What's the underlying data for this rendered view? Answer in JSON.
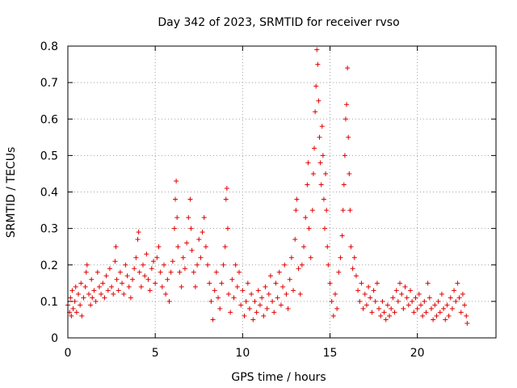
{
  "chart_data": {
    "type": "scatter",
    "title": "Day 342 of 2023, SRMTID for receiver rvso",
    "xlabel": "GPS time / hours",
    "ylabel": "SRMTID / TECUs",
    "xlim": [
      0,
      24.5
    ],
    "ylim": [
      0,
      0.8
    ],
    "x_ticks": [
      0,
      5,
      10,
      15,
      20
    ],
    "y_ticks": [
      0,
      0.1,
      0.2,
      0.3,
      0.4,
      0.5,
      0.6,
      0.7,
      0.8
    ],
    "x_tick_labels": [
      "0",
      "5",
      "10",
      "15",
      "20"
    ],
    "y_tick_labels": [
      "0",
      "0.1",
      "0.2",
      "0.3",
      "0.4",
      "0.5",
      "0.6",
      "0.7",
      "0.8"
    ],
    "grid": true,
    "marker": "+",
    "color": "#e00000",
    "series": [
      {
        "name": "SRMTID",
        "points": [
          [
            0.0,
            0.09
          ],
          [
            0.1,
            0.07
          ],
          [
            0.15,
            0.11
          ],
          [
            0.2,
            0.06
          ],
          [
            0.25,
            0.13
          ],
          [
            0.3,
            0.08
          ],
          [
            0.4,
            0.1
          ],
          [
            0.45,
            0.14
          ],
          [
            0.5,
            0.07
          ],
          [
            0.6,
            0.12
          ],
          [
            0.7,
            0.09
          ],
          [
            0.75,
            0.15
          ],
          [
            0.8,
            0.06
          ],
          [
            0.9,
            0.11
          ],
          [
            1.0,
            0.14
          ],
          [
            1.05,
            0.18
          ],
          [
            1.1,
            0.2
          ],
          [
            1.2,
            0.12
          ],
          [
            1.3,
            0.09
          ],
          [
            1.35,
            0.16
          ],
          [
            1.4,
            0.11
          ],
          [
            1.5,
            0.13
          ],
          [
            1.6,
            0.1
          ],
          [
            1.7,
            0.18
          ],
          [
            1.8,
            0.14
          ],
          [
            1.9,
            0.12
          ],
          [
            2.0,
            0.15
          ],
          [
            2.1,
            0.11
          ],
          [
            2.2,
            0.17
          ],
          [
            2.3,
            0.13
          ],
          [
            2.4,
            0.19
          ],
          [
            2.5,
            0.14
          ],
          [
            2.6,
            0.12
          ],
          [
            2.7,
            0.21
          ],
          [
            2.75,
            0.25
          ],
          [
            2.8,
            0.16
          ],
          [
            2.9,
            0.13
          ],
          [
            3.0,
            0.18
          ],
          [
            3.1,
            0.15
          ],
          [
            3.2,
            0.12
          ],
          [
            3.3,
            0.2
          ],
          [
            3.4,
            0.17
          ],
          [
            3.5,
            0.14
          ],
          [
            3.6,
            0.11
          ],
          [
            3.7,
            0.16
          ],
          [
            3.8,
            0.19
          ],
          [
            3.9,
            0.22
          ],
          [
            4.0,
            0.27
          ],
          [
            4.05,
            0.29
          ],
          [
            4.1,
            0.18
          ],
          [
            4.2,
            0.14
          ],
          [
            4.3,
            0.2
          ],
          [
            4.4,
            0.17
          ],
          [
            4.5,
            0.23
          ],
          [
            4.6,
            0.16
          ],
          [
            4.7,
            0.13
          ],
          [
            4.8,
            0.19
          ],
          [
            4.9,
            0.21
          ],
          [
            5.0,
            0.15
          ],
          [
            5.1,
            0.22
          ],
          [
            5.2,
            0.25
          ],
          [
            5.3,
            0.18
          ],
          [
            5.4,
            0.14
          ],
          [
            5.5,
            0.2
          ],
          [
            5.6,
            0.12
          ],
          [
            5.7,
            0.16
          ],
          [
            5.8,
            0.1
          ],
          [
            5.9,
            0.18
          ],
          [
            6.0,
            0.21
          ],
          [
            6.1,
            0.3
          ],
          [
            6.15,
            0.38
          ],
          [
            6.2,
            0.43
          ],
          [
            6.25,
            0.33
          ],
          [
            6.3,
            0.25
          ],
          [
            6.4,
            0.18
          ],
          [
            6.5,
            0.14
          ],
          [
            6.6,
            0.22
          ],
          [
            6.7,
            0.19
          ],
          [
            6.8,
            0.26
          ],
          [
            6.9,
            0.33
          ],
          [
            7.0,
            0.38
          ],
          [
            7.05,
            0.3
          ],
          [
            7.1,
            0.24
          ],
          [
            7.2,
            0.18
          ],
          [
            7.3,
            0.14
          ],
          [
            7.4,
            0.2
          ],
          [
            7.5,
            0.27
          ],
          [
            7.6,
            0.22
          ],
          [
            7.7,
            0.29
          ],
          [
            7.8,
            0.33
          ],
          [
            7.9,
            0.25
          ],
          [
            8.0,
            0.2
          ],
          [
            8.1,
            0.15
          ],
          [
            8.2,
            0.1
          ],
          [
            8.3,
            0.05
          ],
          [
            8.4,
            0.13
          ],
          [
            8.5,
            0.18
          ],
          [
            8.6,
            0.11
          ],
          [
            8.7,
            0.08
          ],
          [
            8.8,
            0.15
          ],
          [
            8.9,
            0.2
          ],
          [
            9.0,
            0.25
          ],
          [
            9.05,
            0.38
          ],
          [
            9.1,
            0.41
          ],
          [
            9.15,
            0.3
          ],
          [
            9.2,
            0.12
          ],
          [
            9.3,
            0.07
          ],
          [
            9.4,
            0.16
          ],
          [
            9.5,
            0.11
          ],
          [
            9.6,
            0.2
          ],
          [
            9.7,
            0.14
          ],
          [
            9.8,
            0.18
          ],
          [
            9.9,
            0.09
          ],
          [
            10.0,
            0.13
          ],
          [
            10.1,
            0.06
          ],
          [
            10.2,
            0.1
          ],
          [
            10.3,
            0.15
          ],
          [
            10.4,
            0.08
          ],
          [
            10.5,
            0.12
          ],
          [
            10.6,
            0.05
          ],
          [
            10.7,
            0.1
          ],
          [
            10.8,
            0.07
          ],
          [
            10.9,
            0.13
          ],
          [
            11.0,
            0.09
          ],
          [
            11.1,
            0.11
          ],
          [
            11.2,
            0.06
          ],
          [
            11.3,
            0.14
          ],
          [
            11.4,
            0.08
          ],
          [
            11.5,
            0.12
          ],
          [
            11.6,
            0.17
          ],
          [
            11.7,
            0.1
          ],
          [
            11.8,
            0.07
          ],
          [
            11.9,
            0.15
          ],
          [
            12.0,
            0.11
          ],
          [
            12.1,
            0.18
          ],
          [
            12.2,
            0.09
          ],
          [
            12.3,
            0.14
          ],
          [
            12.4,
            0.2
          ],
          [
            12.5,
            0.12
          ],
          [
            12.6,
            0.08
          ],
          [
            12.7,
            0.16
          ],
          [
            12.8,
            0.22
          ],
          [
            12.9,
            0.13
          ],
          [
            13.0,
            0.27
          ],
          [
            13.05,
            0.35
          ],
          [
            13.1,
            0.38
          ],
          [
            13.2,
            0.19
          ],
          [
            13.3,
            0.12
          ],
          [
            13.4,
            0.2
          ],
          [
            13.5,
            0.25
          ],
          [
            13.6,
            0.33
          ],
          [
            13.7,
            0.42
          ],
          [
            13.75,
            0.48
          ],
          [
            13.8,
            0.3
          ],
          [
            13.9,
            0.22
          ],
          [
            14.0,
            0.35
          ],
          [
            14.05,
            0.45
          ],
          [
            14.1,
            0.52
          ],
          [
            14.15,
            0.62
          ],
          [
            14.2,
            0.69
          ],
          [
            14.25,
            0.79
          ],
          [
            14.3,
            0.75
          ],
          [
            14.35,
            0.65
          ],
          [
            14.4,
            0.55
          ],
          [
            14.45,
            0.48
          ],
          [
            14.5,
            0.42
          ],
          [
            14.55,
            0.58
          ],
          [
            14.6,
            0.5
          ],
          [
            14.65,
            0.38
          ],
          [
            14.7,
            0.3
          ],
          [
            14.75,
            0.45
          ],
          [
            14.8,
            0.35
          ],
          [
            14.85,
            0.25
          ],
          [
            14.9,
            0.2
          ],
          [
            15.0,
            0.15
          ],
          [
            15.1,
            0.1
          ],
          [
            15.2,
            0.06
          ],
          [
            15.3,
            0.12
          ],
          [
            15.4,
            0.08
          ],
          [
            15.5,
            0.18
          ],
          [
            15.6,
            0.22
          ],
          [
            15.7,
            0.28
          ],
          [
            15.75,
            0.35
          ],
          [
            15.8,
            0.42
          ],
          [
            15.85,
            0.5
          ],
          [
            15.9,
            0.6
          ],
          [
            15.95,
            0.64
          ],
          [
            16.0,
            0.74
          ],
          [
            16.05,
            0.55
          ],
          [
            16.1,
            0.45
          ],
          [
            16.15,
            0.35
          ],
          [
            16.2,
            0.25
          ],
          [
            16.3,
            0.19
          ],
          [
            16.4,
            0.22
          ],
          [
            16.5,
            0.17
          ],
          [
            16.6,
            0.13
          ],
          [
            16.7,
            0.1
          ],
          [
            16.8,
            0.15
          ],
          [
            16.9,
            0.08
          ],
          [
            17.0,
            0.12
          ],
          [
            17.1,
            0.09
          ],
          [
            17.2,
            0.14
          ],
          [
            17.3,
            0.11
          ],
          [
            17.4,
            0.07
          ],
          [
            17.5,
            0.13
          ],
          [
            17.6,
            0.1
          ],
          [
            17.7,
            0.15
          ],
          [
            17.8,
            0.08
          ],
          [
            17.9,
            0.06
          ],
          [
            18.0,
            0.1
          ],
          [
            18.1,
            0.07
          ],
          [
            18.2,
            0.05
          ],
          [
            18.3,
            0.09
          ],
          [
            18.4,
            0.06
          ],
          [
            18.5,
            0.08
          ],
          [
            18.6,
            0.11
          ],
          [
            18.7,
            0.07
          ],
          [
            18.8,
            0.13
          ],
          [
            18.9,
            0.1
          ],
          [
            19.0,
            0.15
          ],
          [
            19.1,
            0.12
          ],
          [
            19.2,
            0.08
          ],
          [
            19.3,
            0.14
          ],
          [
            19.4,
            0.11
          ],
          [
            19.5,
            0.09
          ],
          [
            19.6,
            0.13
          ],
          [
            19.7,
            0.1
          ],
          [
            19.8,
            0.07
          ],
          [
            19.9,
            0.11
          ],
          [
            20.0,
            0.08
          ],
          [
            20.1,
            0.12
          ],
          [
            20.2,
            0.09
          ],
          [
            20.3,
            0.06
          ],
          [
            20.4,
            0.1
          ],
          [
            20.5,
            0.07
          ],
          [
            20.6,
            0.15
          ],
          [
            20.7,
            0.11
          ],
          [
            20.8,
            0.08
          ],
          [
            20.9,
            0.05
          ],
          [
            21.0,
            0.09
          ],
          [
            21.1,
            0.06
          ],
          [
            21.2,
            0.1
          ],
          [
            21.3,
            0.07
          ],
          [
            21.4,
            0.12
          ],
          [
            21.5,
            0.08
          ],
          [
            21.6,
            0.05
          ],
          [
            21.7,
            0.09
          ],
          [
            21.8,
            0.06
          ],
          [
            21.9,
            0.11
          ],
          [
            22.0,
            0.08
          ],
          [
            22.1,
            0.13
          ],
          [
            22.2,
            0.1
          ],
          [
            22.3,
            0.15
          ],
          [
            22.4,
            0.11
          ],
          [
            22.5,
            0.07
          ],
          [
            22.6,
            0.12
          ],
          [
            22.7,
            0.09
          ],
          [
            22.8,
            0.06
          ],
          [
            22.85,
            0.04
          ]
        ]
      }
    ]
  }
}
